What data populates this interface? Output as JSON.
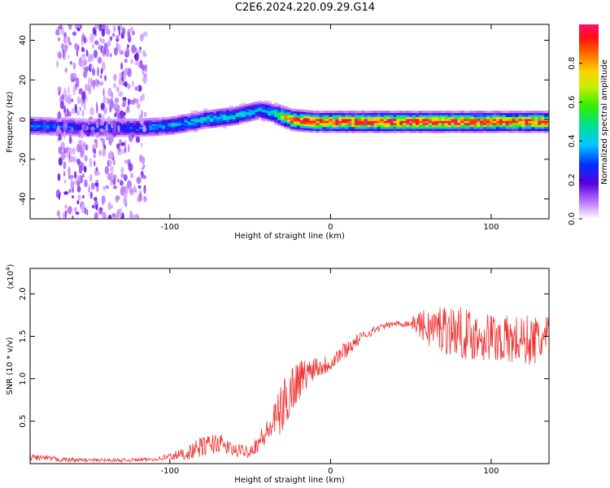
{
  "title": "C2E6.2024.220.09.29.G14",
  "chart_data": [
    {
      "type": "heatmap",
      "xlabel": "Height of straight line (km)",
      "ylabel": "Frequency (Hz)",
      "xlim": [
        -187,
        136
      ],
      "ylim": [
        -50,
        48
      ],
      "x_ticks": [
        -100,
        0,
        100
      ],
      "y_ticks": [
        -40,
        -20,
        0,
        20,
        40
      ],
      "colorbar": {
        "label": "Normalized spectral amplitude",
        "range": [
          0,
          1
        ],
        "ticks": [
          "0.0",
          "0.2",
          "0.4",
          "0.6",
          "0.8"
        ]
      },
      "ridge": {
        "x": [
          -187,
          -150,
          -120,
          -100,
          -80,
          -60,
          -45,
          -35,
          -25,
          -10,
          0,
          30,
          60,
          100,
          136
        ],
        "center_freq": [
          -3,
          -4,
          -4,
          -3,
          0,
          2,
          5,
          3,
          0,
          -1,
          -1,
          -1,
          -1,
          -1,
          -1
        ],
        "peak_amplitude": [
          0.3,
          0.25,
          0.3,
          0.35,
          0.4,
          0.4,
          0.35,
          0.5,
          0.9,
          0.85,
          0.9,
          0.95,
          0.95,
          0.9,
          0.9
        ]
      },
      "noise_band_x": [
        -170,
        -115
      ]
    },
    {
      "type": "line",
      "xlabel": "Height of straight line (km)",
      "ylabel": "SNR (10 * v/v)",
      "y_scale_label": "(x10",
      "y_scale_exp": "4",
      "y_scale_close": ")",
      "xlim": [
        -187,
        136
      ],
      "ylim": [
        0,
        2.3
      ],
      "x_ticks": [
        -100,
        0,
        100
      ],
      "y_ticks": [
        0.5,
        1.0,
        1.5,
        2.0
      ],
      "line_color": "#ee3333",
      "series": [
        {
          "x": [
            -187,
            -170,
            -150,
            -130,
            -110,
            -100,
            -90,
            -80,
            -70,
            -60,
            -50,
            -40,
            -35,
            -30,
            -25,
            -20,
            -15,
            -10,
            -5,
            0,
            10,
            20,
            30,
            40,
            50,
            55,
            60,
            70,
            80,
            90,
            100,
            110,
            120,
            130,
            136
          ],
          "values": [
            0.08,
            0.05,
            0.04,
            0.04,
            0.05,
            0.08,
            0.12,
            0.2,
            0.25,
            0.15,
            0.15,
            0.35,
            0.5,
            0.65,
            0.85,
            1.0,
            1.05,
            1.15,
            1.15,
            1.2,
            1.35,
            1.5,
            1.6,
            1.65,
            1.65,
            1.65,
            1.6,
            1.6,
            1.55,
            1.5,
            1.5,
            1.45,
            1.45,
            1.45,
            1.45
          ],
          "noise_amplitude": [
            0.04,
            0.03,
            0.02,
            0.02,
            0.02,
            0.05,
            0.08,
            0.12,
            0.12,
            0.08,
            0.08,
            0.15,
            0.22,
            0.3,
            0.35,
            0.25,
            0.18,
            0.15,
            0.12,
            0.12,
            0.1,
            0.06,
            0.04,
            0.03,
            0.05,
            0.15,
            0.22,
            0.3,
            0.3,
            0.3,
            0.3,
            0.3,
            0.3,
            0.3,
            0.3
          ]
        }
      ]
    }
  ]
}
